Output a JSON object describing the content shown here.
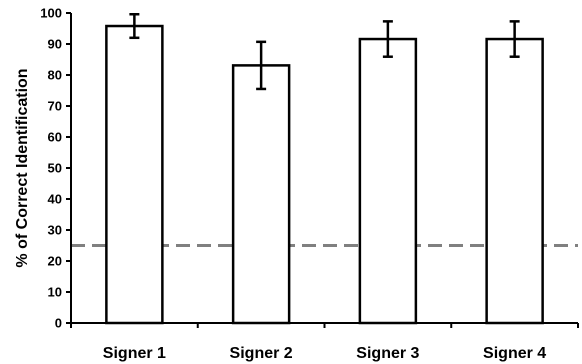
{
  "chart_data": {
    "type": "bar",
    "title": "",
    "xlabel": "",
    "ylabel": "% of Correct Identification",
    "categories": [
      "Signer 1",
      "Signer 2",
      "Signer 3",
      "Signer 4"
    ],
    "values": [
      95.8,
      83.1,
      91.6,
      91.6
    ],
    "error": [
      3.8,
      7.6,
      5.7,
      5.7
    ],
    "ylim": [
      0,
      100
    ],
    "yticks": [
      "0",
      "10",
      "20",
      "30",
      "40",
      "50",
      "60",
      "70",
      "80",
      "90",
      "100"
    ],
    "reference_line": {
      "value": 25,
      "style": "dashed",
      "color": "#808080"
    },
    "bar_fill": "#ffffff",
    "bar_stroke": "#000000",
    "grid": false,
    "legend": "none"
  }
}
